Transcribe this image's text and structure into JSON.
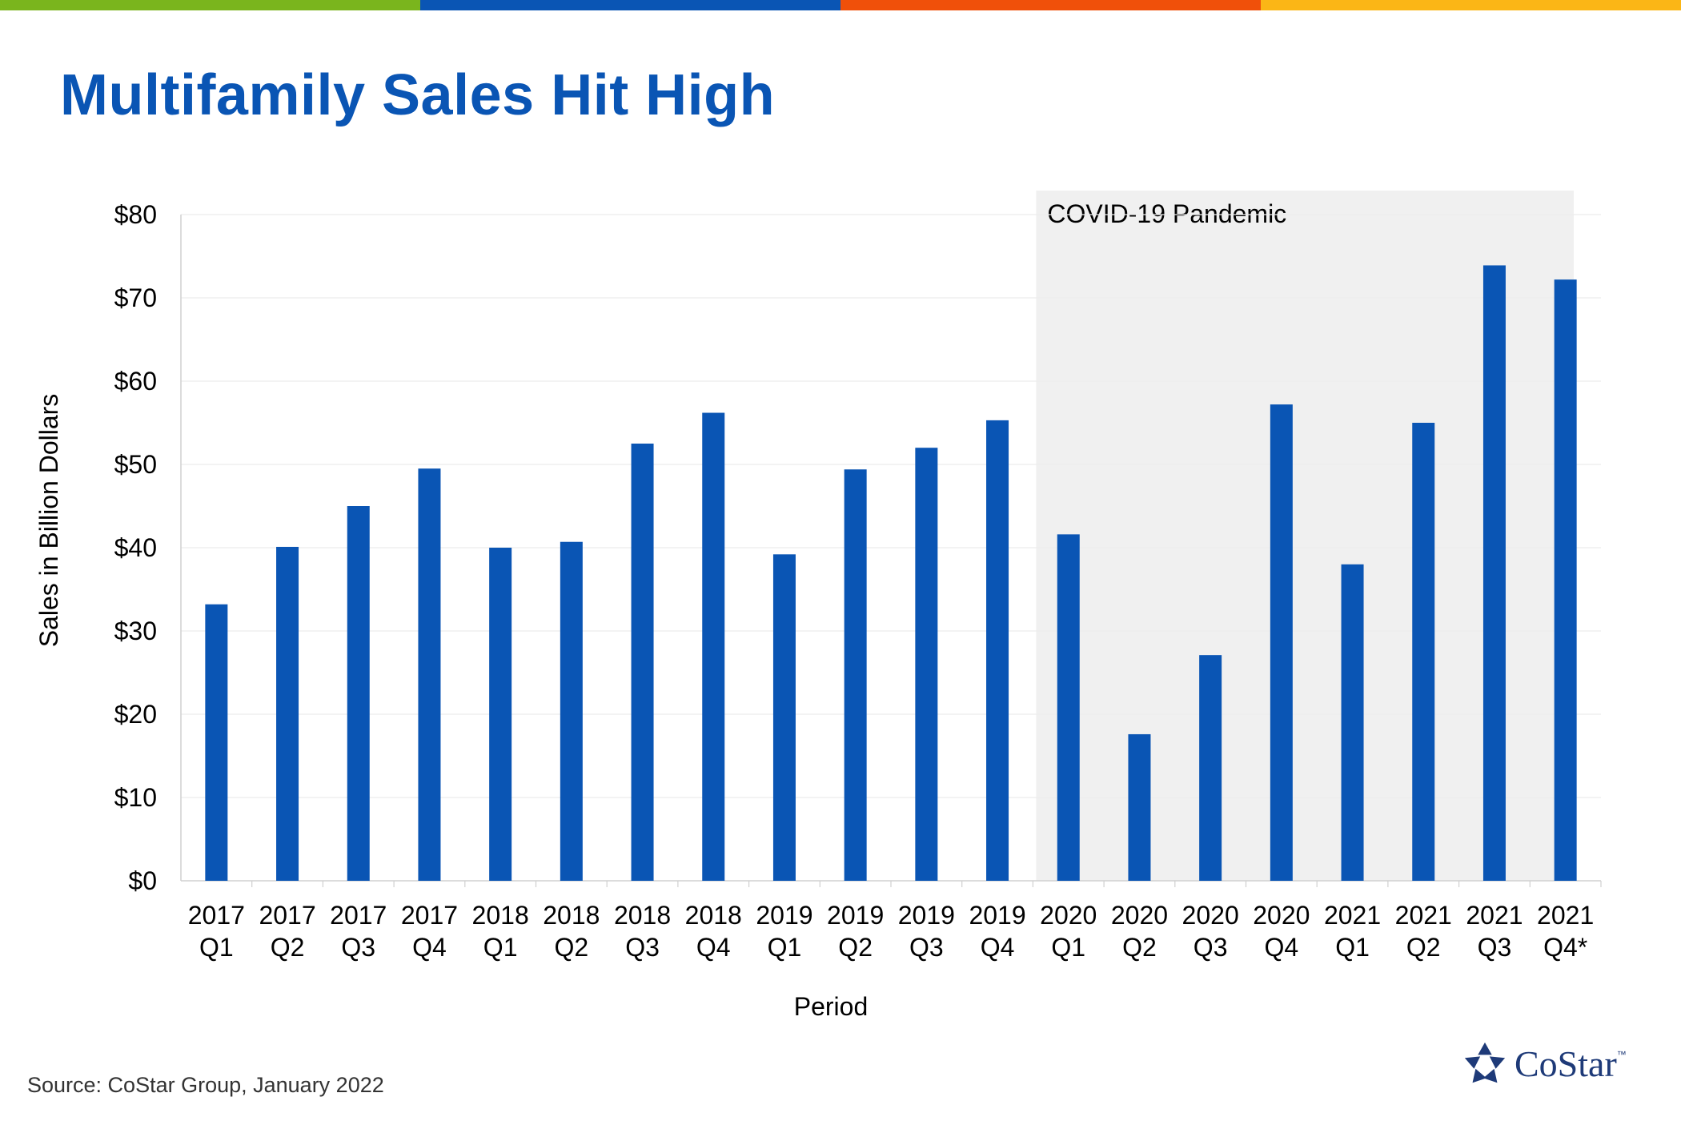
{
  "header": {
    "title": "Multifamily Sales Hit High",
    "stripe_colors": [
      "#7ab51d",
      "#0a55b4",
      "#f0500a",
      "#fbb616"
    ]
  },
  "footer": {
    "source": "Source: CoStar Group, January 2022",
    "logo_text": "CoStar",
    "logo_tm": "™",
    "logo_icon": "costar-star-icon"
  },
  "chart_data": {
    "type": "bar",
    "title": "",
    "xlabel": "Period",
    "ylabel": "Sales in Billion Dollars",
    "ylim": [
      0,
      80
    ],
    "yticks": [
      "$0",
      "$10",
      "$20",
      "$30",
      "$40",
      "$50",
      "$60",
      "$70",
      "$80"
    ],
    "grid": true,
    "bar_color": "#0a55b4",
    "categories": [
      [
        "2017",
        "Q1"
      ],
      [
        "2017",
        "Q2"
      ],
      [
        "2017",
        "Q3"
      ],
      [
        "2017",
        "Q4"
      ],
      [
        "2018",
        "Q1"
      ],
      [
        "2018",
        "Q2"
      ],
      [
        "2018",
        "Q3"
      ],
      [
        "2018",
        "Q4"
      ],
      [
        "2019",
        "Q1"
      ],
      [
        "2019",
        "Q2"
      ],
      [
        "2019",
        "Q3"
      ],
      [
        "2019",
        "Q4"
      ],
      [
        "2020",
        "Q1"
      ],
      [
        "2020",
        "Q2"
      ],
      [
        "2020",
        "Q3"
      ],
      [
        "2020",
        "Q4"
      ],
      [
        "2021",
        "Q1"
      ],
      [
        "2021",
        "Q2"
      ],
      [
        "2021",
        "Q3"
      ],
      [
        "2021",
        "Q4*"
      ]
    ],
    "values": [
      33.2,
      40.1,
      45.0,
      49.5,
      40.0,
      40.7,
      52.5,
      56.2,
      39.2,
      49.4,
      52.0,
      55.3,
      41.6,
      17.6,
      27.1,
      57.2,
      38.0,
      55.0,
      73.9,
      72.2
    ],
    "annotations": [
      {
        "label": "COVID-19 Pandemic",
        "from_category": 12,
        "to_category": 19,
        "fill": "#f0f0f0"
      }
    ]
  }
}
